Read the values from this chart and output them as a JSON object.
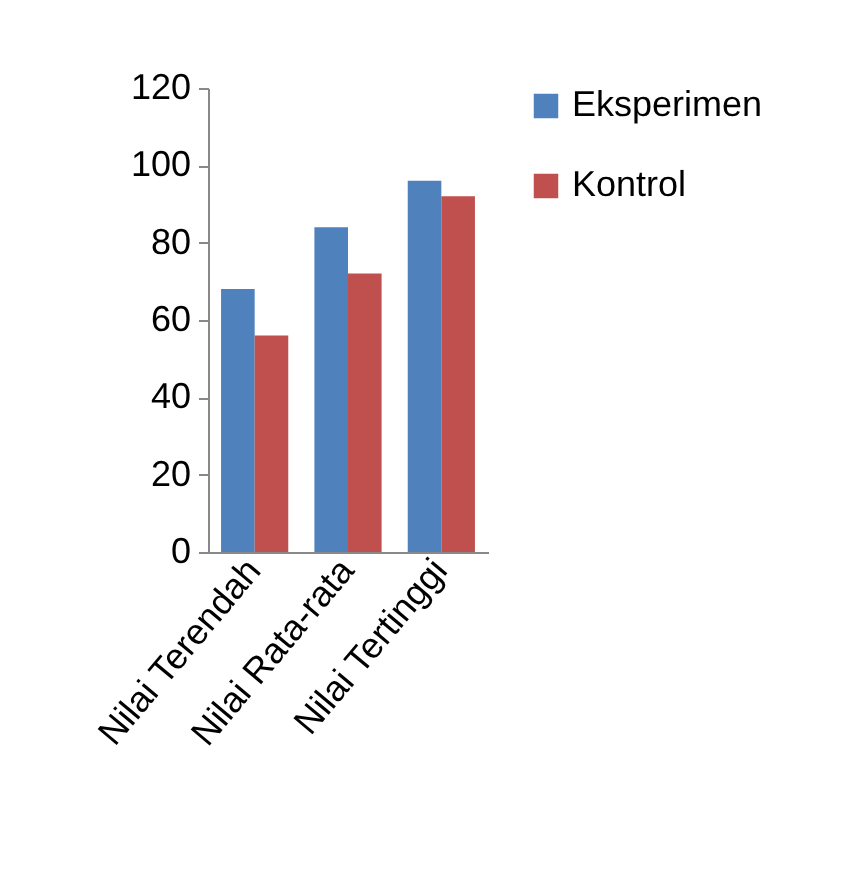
{
  "chart_data": {
    "type": "bar",
    "categories": [
      "Nilai Terendah",
      "Nilai Rata-rata",
      "Nilai Tertinggi"
    ],
    "series": [
      {
        "name": "Eksperimen",
        "color": "#4f81bd",
        "values": [
          68,
          84,
          96
        ]
      },
      {
        "name": "Kontrol",
        "color": "#c0504d",
        "values": [
          56,
          72,
          92
        ]
      }
    ],
    "ylim": [
      0,
      120
    ],
    "yticks": [
      0,
      20,
      40,
      60,
      80,
      100,
      120
    ],
    "grid": false,
    "legend": "right"
  }
}
